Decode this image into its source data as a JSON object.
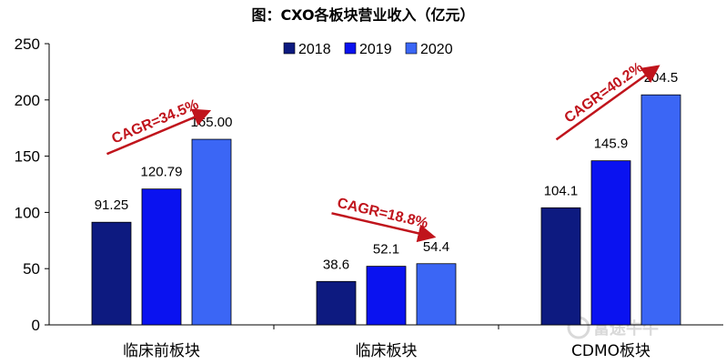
{
  "chart_data": {
    "type": "bar",
    "title": "图：CXO各板块营业收入（亿元）",
    "categories": [
      "临床前板块",
      "临床板块",
      "CDMO板块"
    ],
    "series": [
      {
        "name": "2018",
        "values": [
          91.25,
          38.6,
          104.1
        ],
        "labels": [
          "91.25",
          "38.6",
          "104.1"
        ]
      },
      {
        "name": "2019",
        "values": [
          120.79,
          52.1,
          145.9
        ],
        "labels": [
          "120.79",
          "52.1",
          "145.9"
        ]
      },
      {
        "name": "2020",
        "values": [
          165.0,
          54.4,
          204.5
        ],
        "labels": [
          "165.00",
          "54.4",
          "204.5"
        ]
      }
    ],
    "ylim": [
      0,
      250
    ],
    "yticks": [
      "0",
      "50",
      "100",
      "150",
      "200",
      "250"
    ],
    "legend": "top-center",
    "grid": false,
    "annotations": [
      {
        "category": "临床前板块",
        "text": "CAGR=34.5%"
      },
      {
        "category": "临床板块",
        "text": "CAGR=18.8%"
      },
      {
        "category": "CDMO板块",
        "text": "CAGR=40.2%"
      }
    ]
  },
  "colors": {
    "series": [
      "#0d1a80",
      "#0a12f0",
      "#3b66f5"
    ],
    "annotation": "#c0141c",
    "title": "#1a2a8a",
    "watermark": "#d9d9d9"
  },
  "watermark": "富途牛牛"
}
